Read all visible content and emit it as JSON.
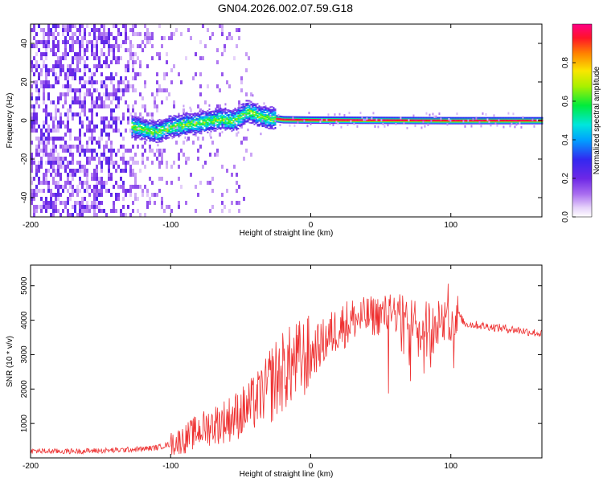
{
  "title": "GN04.2026.002.07.59.G18",
  "chart_data": [
    {
      "type": "heatmap",
      "xlabel": "Height of straight line (km)",
      "ylabel": "Frequency (Hz)",
      "xlim": [
        -200,
        165
      ],
      "ylim": [
        -50,
        50
      ],
      "xticks": [
        "-200",
        "-100",
        "0",
        "100"
      ],
      "yticks": [
        "-40",
        "-20",
        "0",
        "20",
        "40"
      ],
      "colorbar": {
        "label": "Normalized spectral amplitude",
        "range": [
          0,
          1
        ],
        "ticks": [
          "0.0",
          "0.2",
          "0.4",
          "0.6",
          "0.8"
        ]
      },
      "ridge": {
        "description_points": [
          {
            "x": -128,
            "y": -3
          },
          {
            "x": -110,
            "y": -6
          },
          {
            "x": -100,
            "y": -3
          },
          {
            "x": -80,
            "y": -1
          },
          {
            "x": -65,
            "y": 1
          },
          {
            "x": -55,
            "y": 0
          },
          {
            "x": -45,
            "y": 5
          },
          {
            "x": -35,
            "y": 2
          },
          {
            "x": -20,
            "y": 0.5
          },
          {
            "x": 0,
            "y": 0.3
          },
          {
            "x": 100,
            "y": 0
          },
          {
            "x": 165,
            "y": 0
          }
        ]
      }
    },
    {
      "type": "line",
      "xlabel": "Height of straight line (km)",
      "ylabel": "SNR (10 * v/v)",
      "xlim": [
        -200,
        165
      ],
      "ylim": [
        0,
        5600
      ],
      "xticks": [
        "-200",
        "-100",
        "0",
        "100"
      ],
      "yticks": [
        "1000",
        "2000",
        "3000",
        "4000",
        "5000"
      ],
      "color": "#ee3030",
      "series": [
        {
          "name": "SNR",
          "x": [
            -200,
            -180,
            -160,
            -140,
            -120,
            -110,
            -100,
            -90,
            -80,
            -70,
            -60,
            -50,
            -40,
            -30,
            -20,
            -10,
            0,
            10,
            20,
            30,
            40,
            50,
            60,
            70,
            80,
            90,
            100,
            105,
            110,
            120,
            130,
            140,
            150,
            165
          ],
          "y": [
            200,
            190,
            200,
            220,
            260,
            300,
            400,
            550,
            800,
            950,
            1100,
            1300,
            1600,
            2100,
            2500,
            2800,
            3000,
            3400,
            3800,
            4000,
            4100,
            4150,
            4200,
            4100,
            4000,
            3900,
            4000,
            4200,
            3900,
            3850,
            3800,
            3750,
            3700,
            3600
          ]
        }
      ]
    }
  ]
}
